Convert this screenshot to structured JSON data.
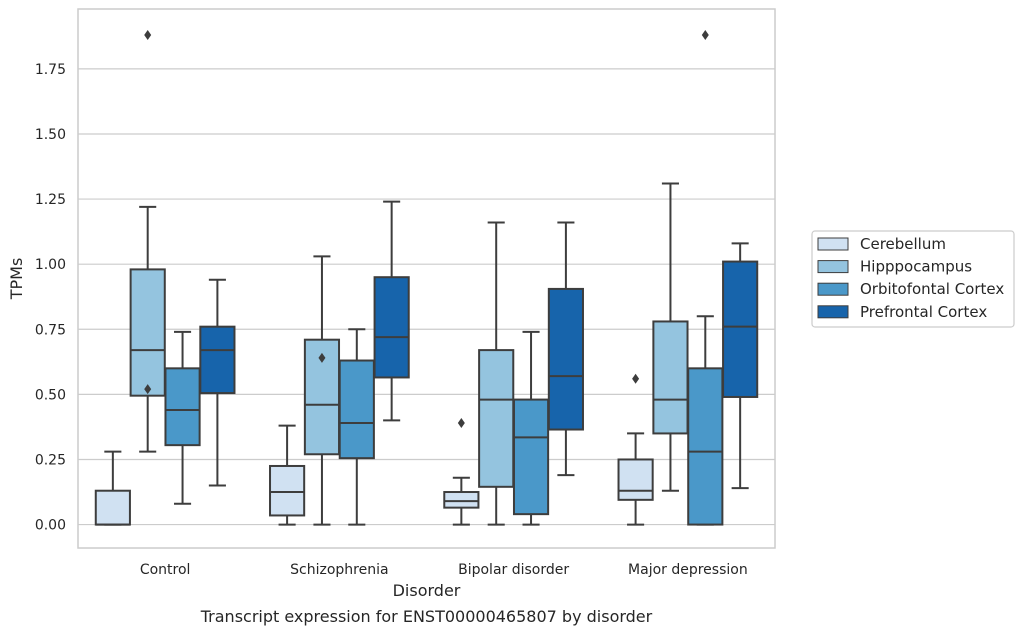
{
  "chart_data": {
    "type": "box",
    "xlabel": "Disorder",
    "ylabel": "TPMs",
    "caption": "Transcript expression for ENST00000465807 by disorder",
    "ylim": [
      -0.09,
      1.98
    ],
    "yticks": [
      0.0,
      0.25,
      0.5,
      0.75,
      1.0,
      1.25,
      1.5,
      1.75
    ],
    "ytick_labels": [
      "0.00",
      "0.25",
      "0.50",
      "0.75",
      "1.00",
      "1.25",
      "1.50",
      "1.75"
    ],
    "grid": true,
    "legend_position": "right",
    "categories": [
      "Control",
      "Schizophrenia",
      "Bipolar disorder",
      "Major depression"
    ],
    "series": [
      {
        "name": "Cerebellum",
        "color": "#d0e1f2",
        "boxes": [
          {
            "whisker_low": 0.0,
            "q1": 0.0,
            "median": 0.0,
            "q3": 0.13,
            "whisker_high": 0.28,
            "outliers": []
          },
          {
            "whisker_low": 0.0,
            "q1": 0.035,
            "median": 0.125,
            "q3": 0.225,
            "whisker_high": 0.38,
            "outliers": []
          },
          {
            "whisker_low": 0.0,
            "q1": 0.065,
            "median": 0.09,
            "q3": 0.125,
            "whisker_high": 0.18,
            "outliers": [
              0.39
            ]
          },
          {
            "whisker_low": 0.0,
            "q1": 0.095,
            "median": 0.13,
            "q3": 0.25,
            "whisker_high": 0.35,
            "outliers": [
              0.56
            ]
          }
        ]
      },
      {
        "name": "Hipppocampus",
        "color": "#94c4df",
        "boxes": [
          {
            "whisker_low": 0.28,
            "q1": 0.495,
            "median": 0.67,
            "q3": 0.98,
            "whisker_high": 1.22,
            "outliers": [
              0.52,
              1.88
            ]
          },
          {
            "whisker_low": 0.0,
            "q1": 0.27,
            "median": 0.46,
            "q3": 0.71,
            "whisker_high": 1.03,
            "outliers": [
              0.64
            ]
          },
          {
            "whisker_low": 0.0,
            "q1": 0.145,
            "median": 0.48,
            "q3": 0.67,
            "whisker_high": 1.16,
            "outliers": []
          },
          {
            "whisker_low": 0.13,
            "q1": 0.35,
            "median": 0.48,
            "q3": 0.78,
            "whisker_high": 1.31,
            "outliers": []
          }
        ]
      },
      {
        "name": "Orbitofontal Cortex",
        "color": "#4a98c9",
        "boxes": [
          {
            "whisker_low": 0.08,
            "q1": 0.305,
            "median": 0.44,
            "q3": 0.6,
            "whisker_high": 0.74,
            "outliers": []
          },
          {
            "whisker_low": 0.0,
            "q1": 0.255,
            "median": 0.39,
            "q3": 0.63,
            "whisker_high": 0.75,
            "outliers": []
          },
          {
            "whisker_low": 0.0,
            "q1": 0.04,
            "median": 0.335,
            "q3": 0.48,
            "whisker_high": 0.74,
            "outliers": []
          },
          {
            "whisker_low": 0.0,
            "q1": 0.0,
            "median": 0.28,
            "q3": 0.6,
            "whisker_high": 0.8,
            "outliers": [
              1.88
            ]
          }
        ]
      },
      {
        "name": "Prefrontal Cortex",
        "color": "#1764ab",
        "boxes": [
          {
            "whisker_low": 0.15,
            "q1": 0.505,
            "median": 0.67,
            "q3": 0.76,
            "whisker_high": 0.94,
            "outliers": []
          },
          {
            "whisker_low": 0.4,
            "q1": 0.565,
            "median": 0.72,
            "q3": 0.95,
            "whisker_high": 1.24,
            "outliers": []
          },
          {
            "whisker_low": 0.19,
            "q1": 0.365,
            "median": 0.57,
            "q3": 0.905,
            "whisker_high": 1.16,
            "outliers": []
          },
          {
            "whisker_low": 0.14,
            "q1": 0.49,
            "median": 0.76,
            "q3": 1.01,
            "whisker_high": 1.08,
            "outliers": []
          }
        ]
      }
    ]
  }
}
